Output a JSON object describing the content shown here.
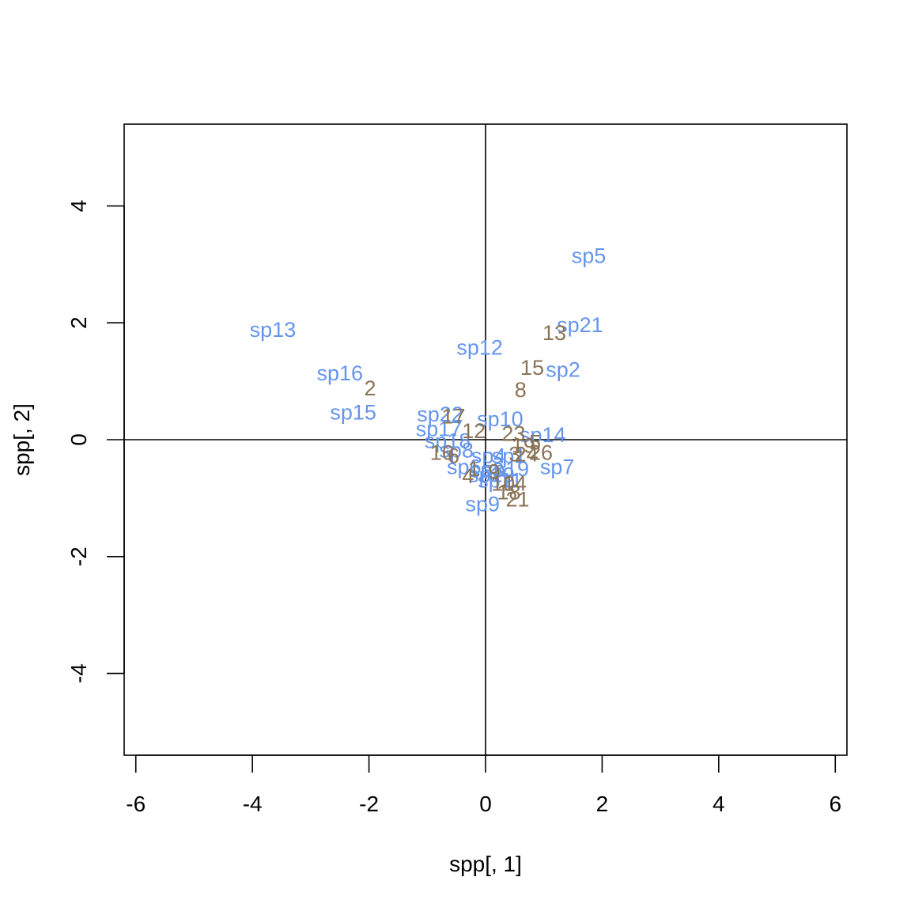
{
  "chart_data": {
    "type": "scatter",
    "title": "",
    "xlabel": "spp[, 1]",
    "ylabel": "spp[, 2]",
    "xlim": [
      -6.2,
      6.2
    ],
    "ylim": [
      -5.4,
      5.4
    ],
    "x_ticks": [
      -6,
      -4,
      -2,
      0,
      2,
      4,
      6
    ],
    "y_ticks": [
      -4,
      -2,
      0,
      2,
      4
    ],
    "x_tick_labels": [
      "-6",
      "-4",
      "-2",
      "0",
      "2",
      "4",
      "6"
    ],
    "y_tick_labels": [
      "-4",
      "-2",
      "0",
      "2",
      "4"
    ],
    "grid": false,
    "reference_lines": {
      "x": 0,
      "y": 0
    },
    "colors": {
      "species": "#6495ED",
      "sites": "#8B7355",
      "axes": "#000000"
    },
    "series": [
      {
        "points": [
          {
            "label": "sp5",
            "x": 1.77,
            "y": 3.15
          },
          {
            "label": "sp21",
            "x": 1.62,
            "y": 1.96
          },
          {
            "label": "sp13",
            "x": -3.65,
            "y": 1.88
          },
          {
            "label": "sp12",
            "x": -0.1,
            "y": 1.58
          },
          {
            "label": "sp16",
            "x": -2.5,
            "y": 1.14
          },
          {
            "label": "sp2",
            "x": 1.33,
            "y": 1.2
          },
          {
            "label": "sp15",
            "x": -2.27,
            "y": 0.47
          },
          {
            "label": "sp22",
            "x": -0.78,
            "y": 0.43
          },
          {
            "label": "sp10",
            "x": 0.25,
            "y": 0.35
          },
          {
            "label": "sp17",
            "x": -0.8,
            "y": 0.18
          },
          {
            "label": "sp14",
            "x": 0.98,
            "y": 0.08
          },
          {
            "label": "sp18",
            "x": -0.65,
            "y": -0.02
          },
          {
            "label": "sp8",
            "x": -0.5,
            "y": -0.18
          },
          {
            "label": "sp4",
            "x": 0.05,
            "y": -0.28
          },
          {
            "label": "sp1",
            "x": 0.4,
            "y": -0.28
          },
          {
            "label": "sp7",
            "x": 1.23,
            "y": -0.47
          },
          {
            "label": "sp6",
            "x": -0.37,
            "y": -0.47
          },
          {
            "label": "sp19",
            "x": 0.35,
            "y": -0.5
          },
          {
            "label": "sp3",
            "x": 0.02,
            "y": -0.52
          },
          {
            "label": "sp20",
            "x": 0.1,
            "y": -0.6
          },
          {
            "label": "sp11",
            "x": 0.25,
            "y": -0.7
          },
          {
            "label": "sp9",
            "x": -0.05,
            "y": -1.1
          }
        ]
      },
      {
        "points": [
          {
            "label": "13",
            "x": 1.18,
            "y": 1.83
          },
          {
            "label": "15",
            "x": 0.8,
            "y": 1.23
          },
          {
            "label": "2",
            "x": -1.98,
            "y": 0.88
          },
          {
            "label": "8",
            "x": 0.6,
            "y": 0.85
          },
          {
            "label": "17",
            "x": -0.55,
            "y": 0.4
          },
          {
            "label": "12",
            "x": -0.2,
            "y": 0.15
          },
          {
            "label": "23",
            "x": 0.48,
            "y": 0.1
          },
          {
            "label": "5",
            "x": 0.85,
            "y": -0.05
          },
          {
            "label": "19",
            "x": 0.65,
            "y": -0.1
          },
          {
            "label": "16",
            "x": -0.75,
            "y": -0.22
          },
          {
            "label": "6",
            "x": -0.55,
            "y": -0.28
          },
          {
            "label": "3",
            "x": 0.5,
            "y": -0.25
          },
          {
            "label": "24",
            "x": 0.7,
            "y": -0.25
          },
          {
            "label": "26",
            "x": 0.95,
            "y": -0.22
          },
          {
            "label": "4",
            "x": -0.3,
            "y": -0.62
          },
          {
            "label": "1",
            "x": -0.2,
            "y": -0.5
          },
          {
            "label": "9",
            "x": 0.15,
            "y": -0.55
          },
          {
            "label": "10",
            "x": 0.3,
            "y": -0.75
          },
          {
            "label": "14",
            "x": 0.5,
            "y": -0.75
          },
          {
            "label": "18",
            "x": 0.4,
            "y": -0.9
          },
          {
            "label": "21",
            "x": 0.55,
            "y": -1.02
          }
        ]
      }
    ]
  }
}
